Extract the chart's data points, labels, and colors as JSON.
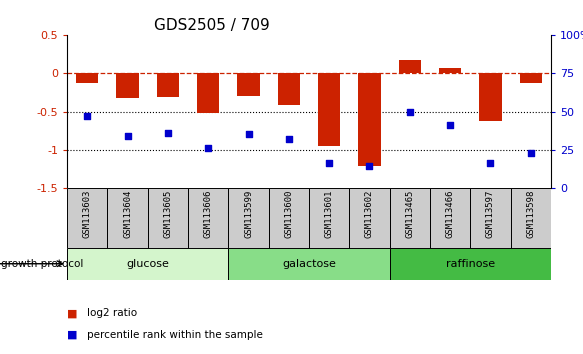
{
  "title": "GDS2505 / 709",
  "samples": [
    "GSM113603",
    "GSM113604",
    "GSM113605",
    "GSM113606",
    "GSM113599",
    "GSM113600",
    "GSM113601",
    "GSM113602",
    "GSM113465",
    "GSM113466",
    "GSM113597",
    "GSM113598"
  ],
  "log2_ratio": [
    -0.13,
    -0.32,
    -0.31,
    -0.52,
    -0.3,
    -0.42,
    -0.95,
    -1.22,
    0.18,
    0.07,
    -0.62,
    -0.12
  ],
  "percentile_rank": [
    47,
    34,
    36,
    26,
    35,
    32,
    16,
    14,
    50,
    41,
    16,
    23
  ],
  "groups": [
    {
      "label": "glucose",
      "start": 0,
      "end": 4,
      "color": "#d4f5cc"
    },
    {
      "label": "galactose",
      "start": 4,
      "end": 8,
      "color": "#88dd88"
    },
    {
      "label": "raffinose",
      "start": 8,
      "end": 12,
      "color": "#44bb44"
    }
  ],
  "bar_color": "#cc2200",
  "dot_color": "#0000cc",
  "ylim_left": [
    -1.5,
    0.5
  ],
  "ylim_right": [
    0,
    100
  ],
  "yticks_left": [
    -1.5,
    -1.0,
    -0.5,
    0.0,
    0.5
  ],
  "yticks_right": [
    0,
    25,
    50,
    75,
    100
  ],
  "hline_y": 0.0,
  "dotted_lines": [
    -0.5,
    -1.0
  ],
  "bar_width": 0.55,
  "label_bg": "#cccccc",
  "legend_items": [
    {
      "label": "log2 ratio",
      "color": "#cc2200"
    },
    {
      "label": "percentile rank within the sample",
      "color": "#0000cc"
    }
  ]
}
